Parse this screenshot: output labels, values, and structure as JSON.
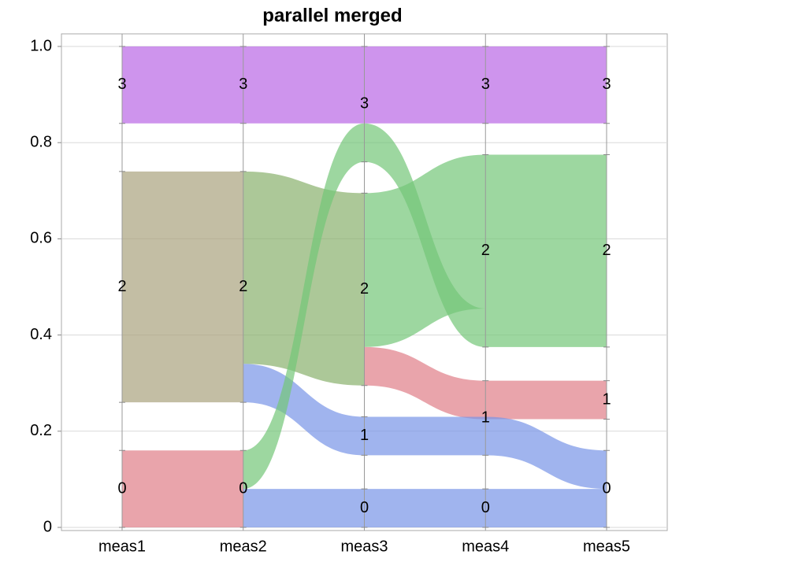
{
  "chart_data": {
    "type": "parallel",
    "title": "parallel merged",
    "categories": [
      "meas1",
      "meas2",
      "meas3",
      "meas4",
      "meas5"
    ],
    "ylim": [
      0,
      1
    ],
    "yticks": [
      0,
      0.2,
      0.4,
      0.6,
      0.8,
      {
        "value": 1,
        "label": "1.0"
      }
    ],
    "grid": true,
    "nodes": [
      {
        "axis": 0,
        "label": "3",
        "lo": 0.84,
        "hi": 1.0
      },
      {
        "axis": 0,
        "label": "2",
        "lo": 0.26,
        "hi": 0.74
      },
      {
        "axis": 0,
        "label": "0",
        "lo": 0,
        "hi": 0.16
      },
      {
        "axis": 1,
        "label": "3",
        "lo": 0.84,
        "hi": 1.0
      },
      {
        "axis": 1,
        "label": "2",
        "lo": 0.26,
        "hi": 0.74
      },
      {
        "axis": 1,
        "label": "0",
        "lo": 0,
        "hi": 0.16
      },
      {
        "axis": 2,
        "label": "3",
        "lo": 0.76,
        "hi": 1.0
      },
      {
        "axis": 2,
        "label": "2",
        "lo": 0.295,
        "hi": 0.695
      },
      {
        "axis": 2,
        "label": "1",
        "lo": 0.15,
        "hi": 0.23
      },
      {
        "axis": 2,
        "label": "0",
        "lo": 0,
        "hi": 0.08
      },
      {
        "axis": 3,
        "label": "3",
        "lo": 0.84,
        "hi": 1.0
      },
      {
        "axis": 3,
        "label": "2",
        "lo": 0.375,
        "hi": 0.775
      },
      {
        "axis": 3,
        "label": "1",
        "lo": 0.15,
        "hi": 0.305
      },
      {
        "axis": 3,
        "label": "0",
        "lo": 0,
        "hi": 0.08
      },
      {
        "axis": 4,
        "label": "3",
        "lo": 0.84,
        "hi": 1.0
      },
      {
        "axis": 4,
        "label": "2",
        "lo": 0.375,
        "hi": 0.775
      },
      {
        "axis": 4,
        "label": "1",
        "lo": 0.225,
        "hi": 0.305
      },
      {
        "axis": 4,
        "label": "0",
        "lo": 0,
        "hi": 0.16
      }
    ],
    "flows": [
      {
        "from": 0,
        "color": "#b966e5",
        "source": [
          0.84,
          1.0
        ],
        "target": [
          0.84,
          1.0
        ]
      },
      {
        "from": 0,
        "color": "#a9a27e",
        "source": [
          0.26,
          0.74
        ],
        "target": [
          0.26,
          0.74
        ]
      },
      {
        "from": 0,
        "color": "#e07e88",
        "source": [
          0,
          0.16
        ],
        "target": [
          0,
          0.16
        ]
      },
      {
        "from": 1,
        "color": "#b966e5",
        "source": [
          0.84,
          1.0
        ],
        "target": [
          0.84,
          1.0
        ]
      },
      {
        "from": 1,
        "color": "#89b06c",
        "source": [
          0.34,
          0.74
        ],
        "target": [
          0.295,
          0.695
        ]
      },
      {
        "from": 1,
        "color": "#7794e7",
        "source": [
          0.26,
          0.34
        ],
        "target": [
          0.15,
          0.23
        ]
      },
      {
        "from": 1,
        "color": "#73c677",
        "source": [
          0.08,
          0.16
        ],
        "target": [
          0.76,
          0.84
        ]
      },
      {
        "from": 1,
        "color": "#7794e7",
        "source": [
          0,
          0.08
        ],
        "target": [
          0,
          0.08
        ]
      },
      {
        "from": 2,
        "color": "#b966e5",
        "source": [
          0.84,
          1.0
        ],
        "target": [
          0.84,
          1.0
        ]
      },
      {
        "from": 2,
        "color": "#73c677",
        "source": [
          0.76,
          0.84
        ],
        "target": [
          0.375,
          0.455
        ]
      },
      {
        "from": 2,
        "color": "#73c677",
        "source": [
          0.375,
          0.695
        ],
        "target": [
          0.455,
          0.775
        ]
      },
      {
        "from": 2,
        "color": "#e07e88",
        "source": [
          0.295,
          0.375
        ],
        "target": [
          0.225,
          0.305
        ]
      },
      {
        "from": 2,
        "color": "#7794e7",
        "source": [
          0.15,
          0.23
        ],
        "target": [
          0.15,
          0.23
        ]
      },
      {
        "from": 2,
        "color": "#7794e7",
        "source": [
          0,
          0.08
        ],
        "target": [
          0,
          0.08
        ]
      },
      {
        "from": 3,
        "color": "#b966e5",
        "source": [
          0.84,
          1.0
        ],
        "target": [
          0.84,
          1.0
        ]
      },
      {
        "from": 3,
        "color": "#73c677",
        "source": [
          0.375,
          0.775
        ],
        "target": [
          0.375,
          0.775
        ]
      },
      {
        "from": 3,
        "color": "#e07e88",
        "source": [
          0.225,
          0.305
        ],
        "target": [
          0.225,
          0.305
        ]
      },
      {
        "from": 3,
        "color": "#7794e7",
        "source": [
          0.15,
          0.23
        ],
        "target": [
          0.08,
          0.16
        ]
      },
      {
        "from": 3,
        "color": "#7794e7",
        "source": [
          0,
          0.08
        ],
        "target": [
          0,
          0.08
        ]
      }
    ]
  }
}
